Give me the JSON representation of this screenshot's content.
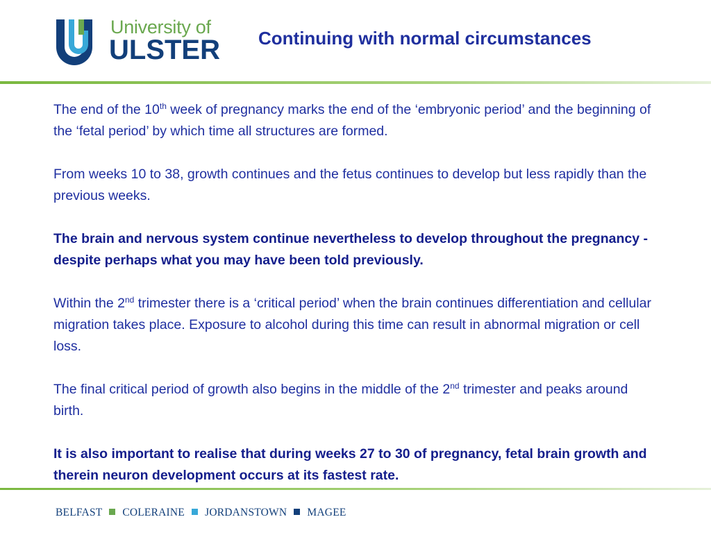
{
  "header": {
    "logo": {
      "line1": "University of",
      "line2": "ULSTER",
      "colors": {
        "green": "#6aa84f",
        "navy": "#123f7a",
        "light_blue": "#38a8d8"
      }
    },
    "title": "Continuing with normal circumstances"
  },
  "content": {
    "p1": {
      "a": "The end of the 10",
      "sup": "th",
      "b": " week of pregnancy marks the end of the ‘embryonic period’ and the beginning of the ‘fetal period’ by which time all structures are formed."
    },
    "p2": "From weeks 10 to 38, growth continues and the fetus continues to develop but less rapidly than the previous weeks.",
    "p3": "The brain and nervous system continue nevertheless to develop throughout the pregnancy - despite perhaps what you may have been told previously.",
    "p4": {
      "a": "Within the 2",
      "sup": "nd",
      "b": " trimester there is a ‘critical period’ when the brain continues differentiation and cellular migration takes place. Exposure to alcohol during this time can result in abnormal migration or cell loss."
    },
    "p5": {
      "a": "The final critical period of growth also begins in the middle of the 2",
      "sup": "nd",
      "b": " trimester and peaks around birth."
    },
    "p6": "It is also important to realise that during weeks 27 to 30 of pregnancy, fetal brain growth and therein neuron development occurs at its fastest rate."
  },
  "footer": {
    "campuses": [
      "BELFAST",
      "COLERAINE",
      "JORDANSTOWN",
      "MAGEE"
    ],
    "separator_colors": [
      "#6aa84f",
      "#38a8d8",
      "#123f7a"
    ]
  },
  "colors": {
    "title": "#1f2f9e",
    "body": "#1f2fa0",
    "rule": "#7ab83f"
  }
}
